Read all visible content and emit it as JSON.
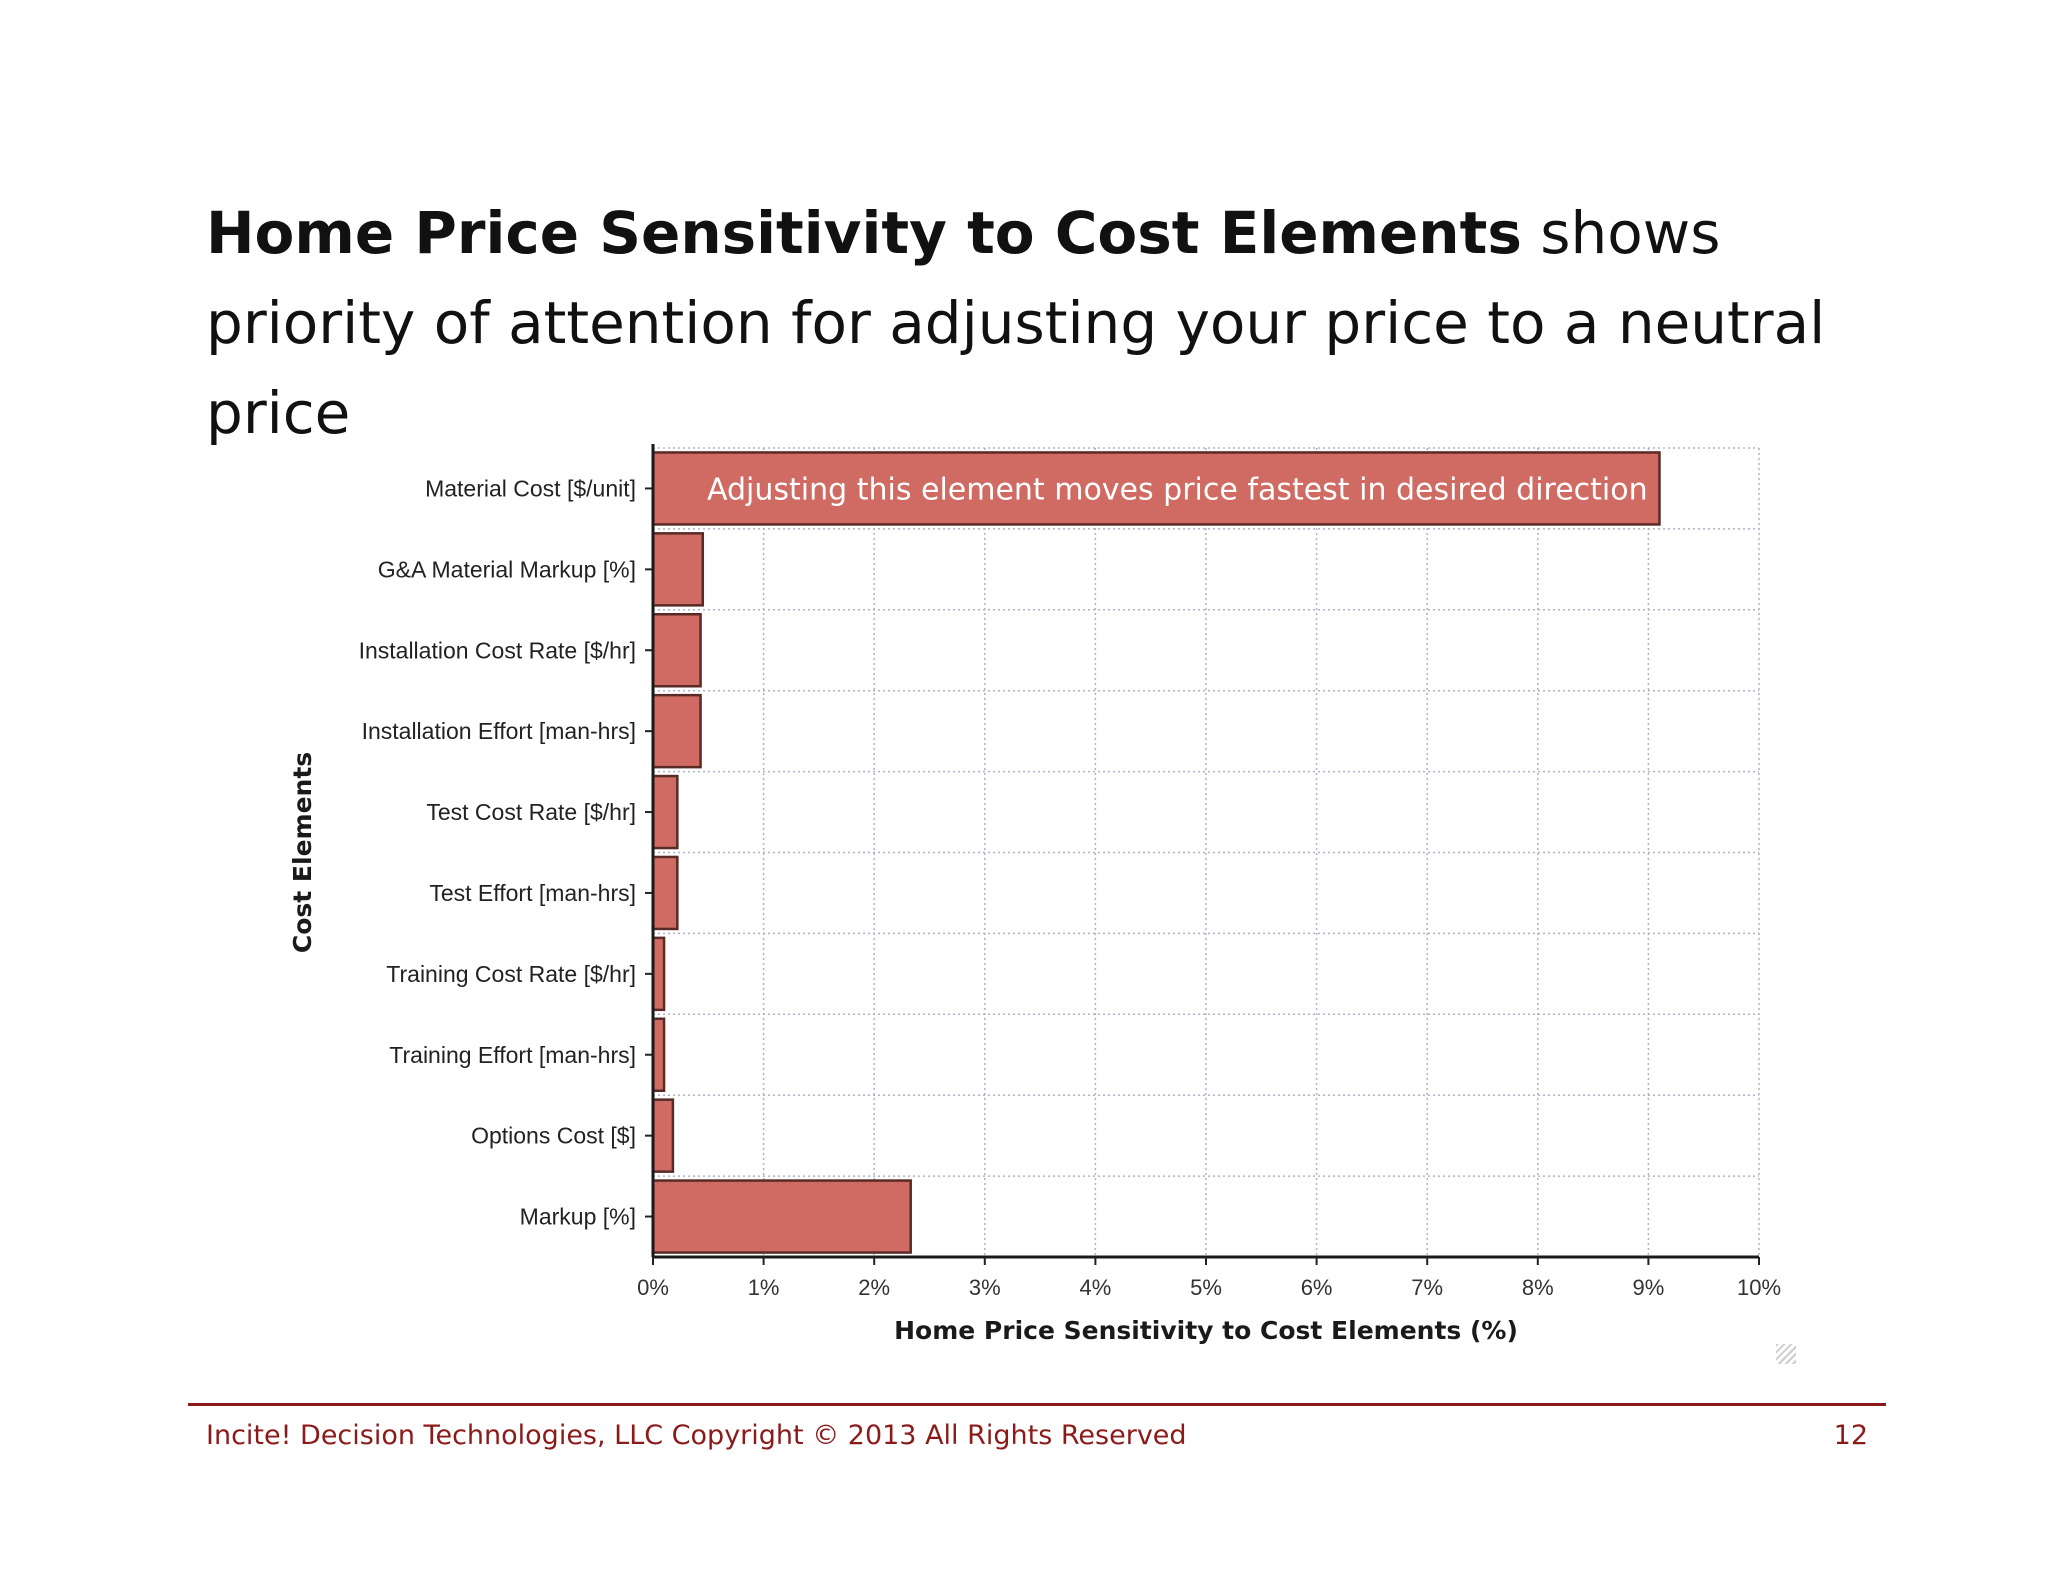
{
  "slide": {
    "title_bold": "Home Price Sensitivity to Cost Elements",
    "title_rest": " shows priority of attention for adjusting your price to a neutral price",
    "footer": "Incite! Decision Technologies, LLC Copyright © 2013 All Rights Reserved",
    "page_number": "12"
  },
  "chart_data": {
    "type": "bar",
    "orientation": "horizontal",
    "categories": [
      "Material Cost [$/unit]",
      "G&A Material Markup [%]",
      "Installation Cost Rate [$/hr]",
      "Installation Effort [man-hrs]",
      "Test Cost Rate [$/hr]",
      "Test Effort [man-hrs]",
      "Training Cost Rate [$/hr]",
      "Training Effort [man-hrs]",
      "Options Cost [$]",
      "Markup [%]"
    ],
    "values": [
      9.1,
      0.45,
      0.43,
      0.43,
      0.22,
      0.22,
      0.1,
      0.1,
      0.18,
      2.33
    ],
    "xlim": [
      0,
      10
    ],
    "xticks": [
      "0%",
      "1%",
      "2%",
      "3%",
      "4%",
      "5%",
      "6%",
      "7%",
      "8%",
      "9%",
      "10%"
    ],
    "xlabel": "Home Price Sensitivity to Cost Elements (%)",
    "ylabel": "Cost Elements",
    "annotation": "Adjusting this element moves price fastest in desired direction",
    "grid": true,
    "legend": "none",
    "bar_color": "#d06b63",
    "bar_edge_color": "#5a2a26",
    "grid_color": "#b0b0c8"
  }
}
